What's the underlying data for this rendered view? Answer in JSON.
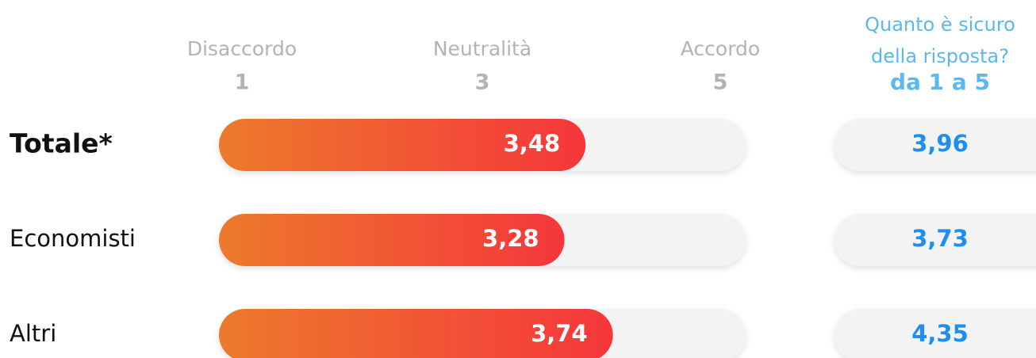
{
  "chart_data": {
    "type": "bar",
    "orientation": "horizontal",
    "categories": [
      "Totale*",
      "Economisti",
      "Altri"
    ],
    "values": [
      3.48,
      3.28,
      3.74
    ],
    "value_labels": [
      "3,48",
      "3,28",
      "3,74"
    ],
    "xlim": [
      0,
      5
    ],
    "scale": [
      {
        "name": "Disaccordo",
        "value": 1
      },
      {
        "name": "Neutralità",
        "value": 3
      },
      {
        "name": "Accordo",
        "value": 5
      }
    ],
    "colors": [
      "#ec7a2c",
      "#f5363b"
    ],
    "confidence": {
      "title_lines": [
        "Quanto è sicuro",
        "della risposta?"
      ],
      "range_label": "da 1 a 5",
      "values": [
        3.96,
        3.73,
        4.35
      ],
      "value_labels": [
        "3,96",
        "3,73",
        "4,35"
      ],
      "color": "#1e8ff0"
    }
  }
}
